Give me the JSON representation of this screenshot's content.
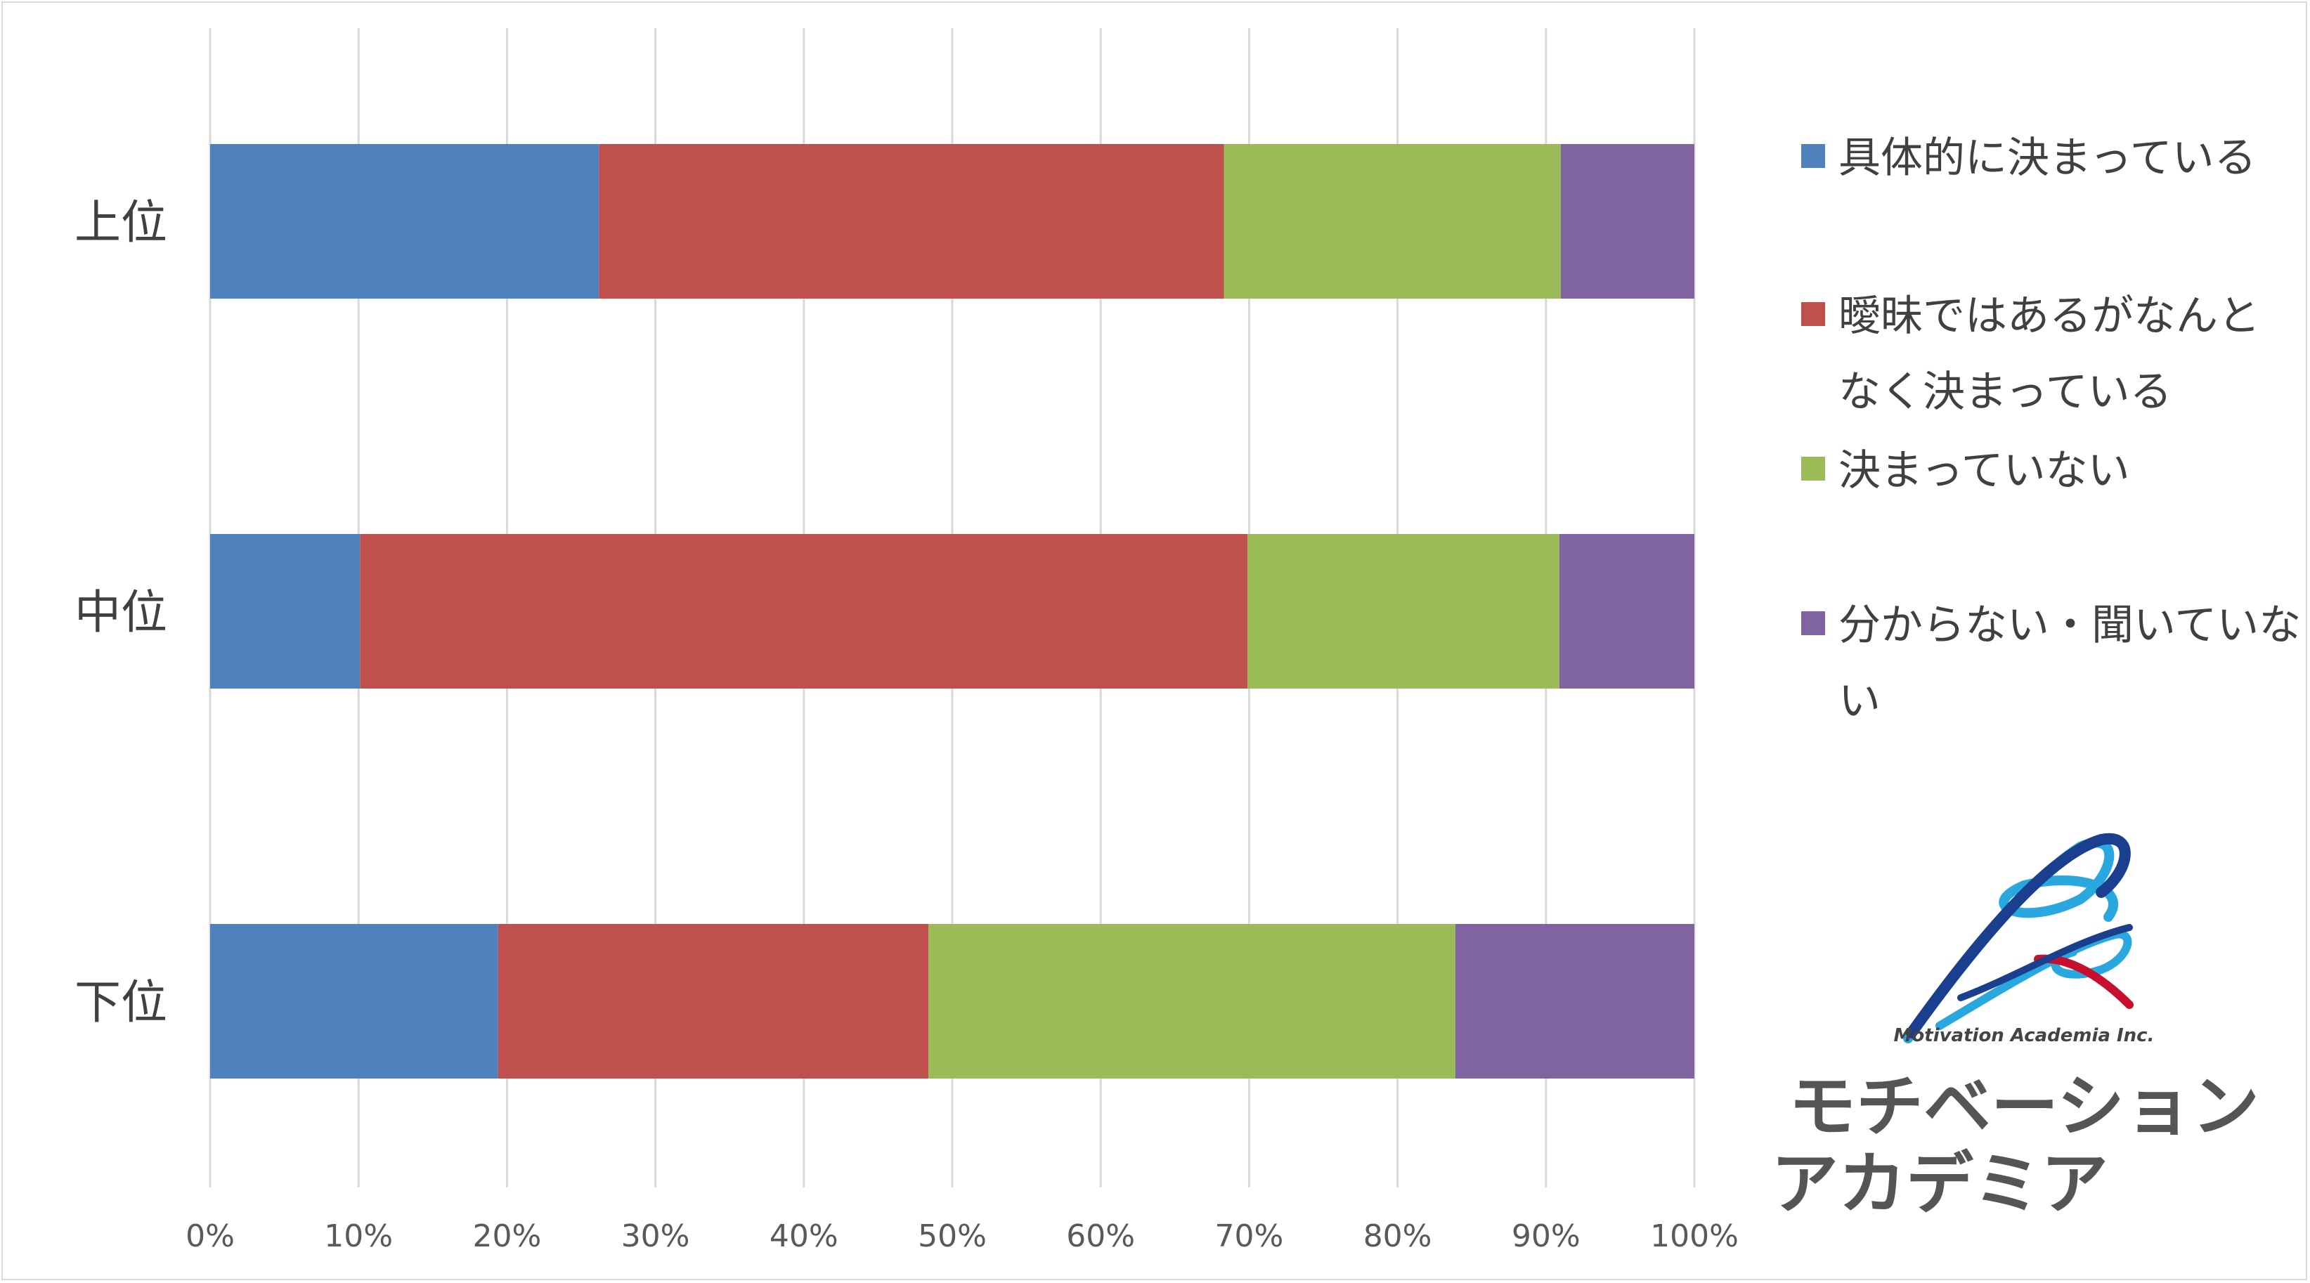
{
  "chart_data": {
    "type": "bar",
    "orientation": "horizontal",
    "stacked": "percent",
    "categories": [
      "上位",
      "中位",
      "下位"
    ],
    "series": [
      {
        "name": "具体的に決まっている",
        "values": [
          26.2,
          10.1,
          19.4
        ],
        "color": "#4f81bd"
      },
      {
        "name": "曖昧ではあるがなんとなく決まっている",
        "values": [
          42.1,
          59.8,
          29.0
        ],
        "color": "#c0504d"
      },
      {
        "name": "決まっていない",
        "values": [
          22.7,
          21.0,
          35.5
        ],
        "color": "#9bbb59"
      },
      {
        "name": "分からない・聞いていない",
        "values": [
          9.0,
          9.1,
          16.1
        ],
        "color": "#8064a2"
      }
    ],
    "xlim": [
      0,
      100
    ],
    "x_ticks": [
      "0%",
      "10%",
      "20%",
      "30%",
      "40%",
      "50%",
      "60%",
      "70%",
      "80%",
      "90%",
      "100%"
    ],
    "grid": true,
    "legend_position": "right",
    "legend_lines": [
      [
        "具体的に決まっている"
      ],
      [
        "曖昧ではあるがなんと",
        "なく決まっている"
      ],
      [
        "決まっていない"
      ],
      [
        "分からない・聞いていな",
        "い"
      ]
    ]
  },
  "logo": {
    "tagline": "Motivation Academia Inc.",
    "name_line1": "モチベーション",
    "name_line2": "アカデミア",
    "colors": {
      "blue": "#1a3f8f",
      "cyan": "#29a8e0",
      "red": "#c8102e",
      "text": "#555555"
    }
  }
}
